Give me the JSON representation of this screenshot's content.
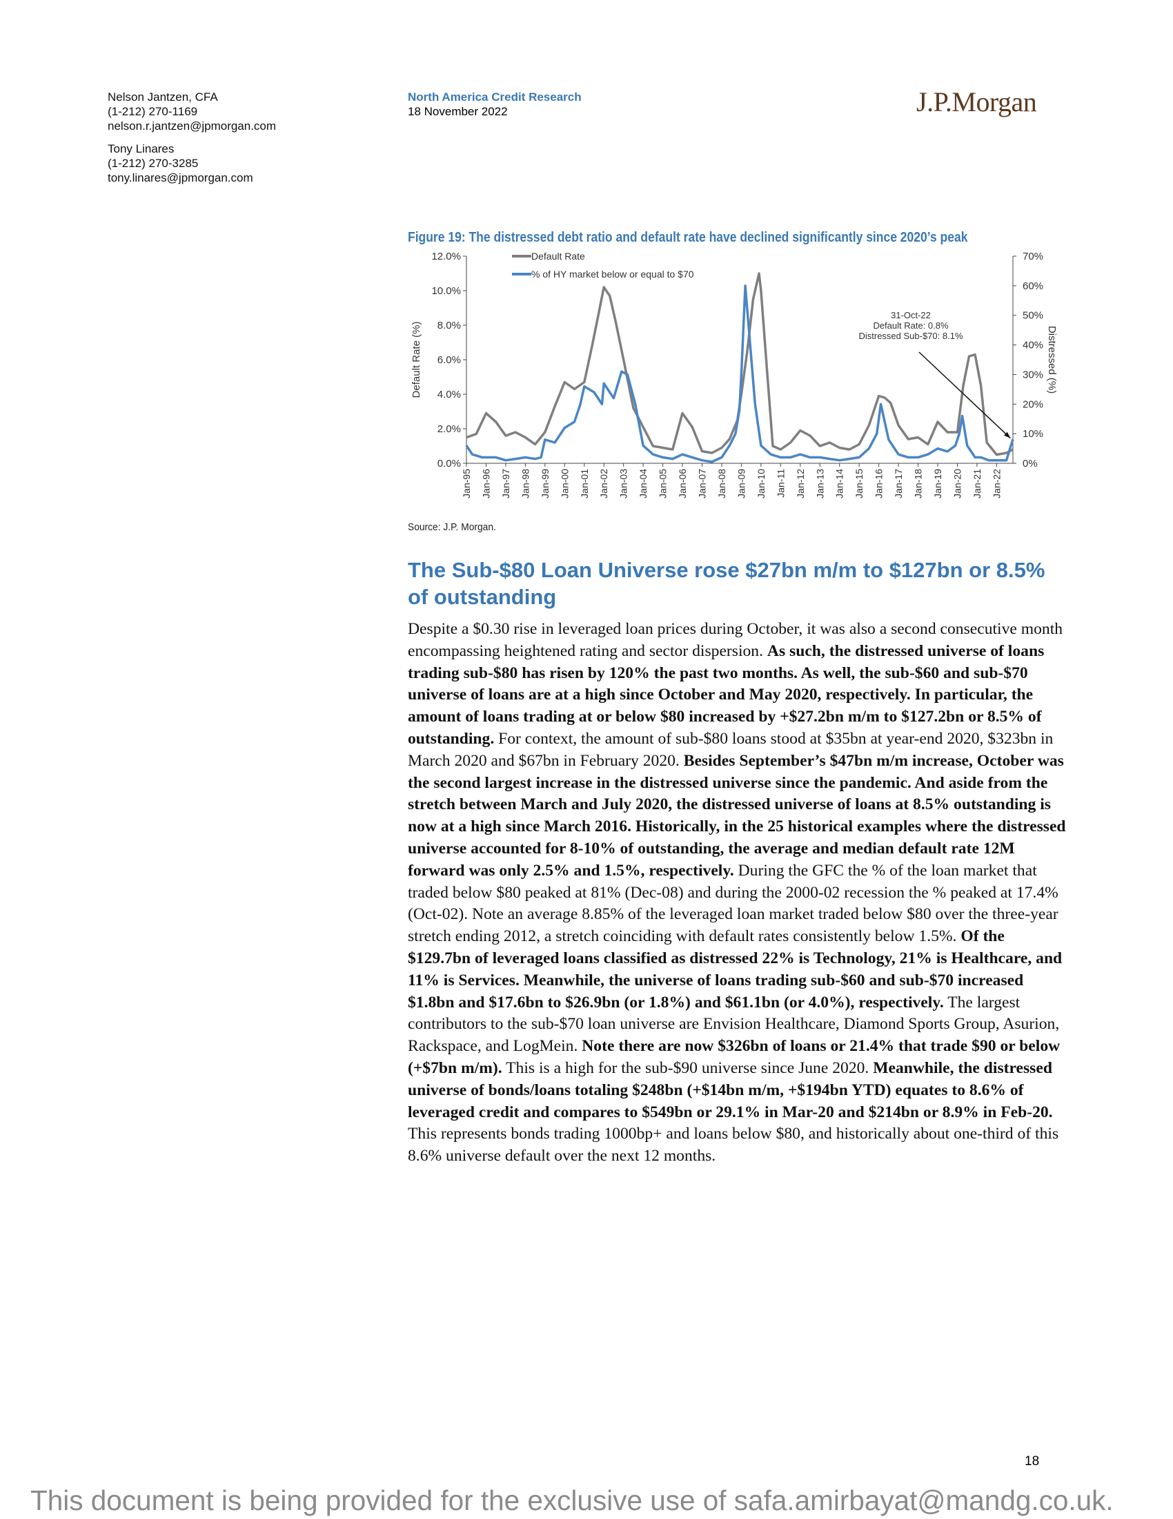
{
  "header": {
    "authors": [
      {
        "name": "Nelson Jantzen, CFA",
        "phone": "(1-212) 270-1169",
        "email": "nelson.r.jantzen@jpmorgan.com"
      },
      {
        "name": "Tony Linares",
        "phone": "(1-212) 270-3285",
        "email": "tony.linares@jpmorgan.com"
      }
    ],
    "department": "North America Credit Research",
    "date": "18 November 2022",
    "logo": "J.P.Morgan"
  },
  "figure": {
    "title": "Figure 19: The distressed debt ratio and default rate have declined significantly since 2020’s peak",
    "source": "Source: J.P. Morgan."
  },
  "chart_data": {
    "type": "line",
    "ylabel": "Default Rate (%)",
    "y2label": "Distressed (%)",
    "ylim": [
      0,
      12
    ],
    "y2lim": [
      0,
      70
    ],
    "yticks": [
      "0.0%",
      "2.0%",
      "4.0%",
      "6.0%",
      "8.0%",
      "10.0%",
      "12.0%"
    ],
    "y2ticks": [
      "0%",
      "10%",
      "20%",
      "30%",
      "40%",
      "50%",
      "60%",
      "70%"
    ],
    "categories": [
      "Jan-95",
      "Jan-96",
      "Jan-97",
      "Jan-98",
      "Jan-99",
      "Jan-00",
      "Jan-01",
      "Jan-02",
      "Jan-03",
      "Jan-04",
      "Jan-05",
      "Jan-06",
      "Jan-07",
      "Jan-08",
      "Jan-09",
      "Jan-10",
      "Jan-11",
      "Jan-12",
      "Jan-13",
      "Jan-14",
      "Jan-15",
      "Jan-16",
      "Jan-17",
      "Jan-18",
      "Jan-19",
      "Jan-20",
      "Jan-21",
      "Jan-22"
    ],
    "legend_position": "top-left",
    "series": [
      {
        "name": "Default Rate",
        "axis": "left",
        "color": "#7f7f7f",
        "x": [
          1995.0,
          1995.5,
          1996.0,
          1996.5,
          1997.0,
          1997.5,
          1998.0,
          1998.5,
          1999.0,
          1999.5,
          2000.0,
          2000.5,
          2001.0,
          2001.4,
          2001.7,
          2002.0,
          2002.3,
          2002.6,
          2003.0,
          2003.5,
          2004.0,
          2004.5,
          2005.0,
          2005.5,
          2006.0,
          2006.5,
          2007.0,
          2007.5,
          2008.0,
          2008.4,
          2008.8,
          2009.0,
          2009.3,
          2009.6,
          2009.9,
          2010.0,
          2010.3,
          2010.6,
          2011.0,
          2011.5,
          2012.0,
          2012.5,
          2013.0,
          2013.5,
          2014.0,
          2014.5,
          2015.0,
          2015.5,
          2016.0,
          2016.3,
          2016.6,
          2017.0,
          2017.5,
          2018.0,
          2018.5,
          2019.0,
          2019.5,
          2020.0,
          2020.3,
          2020.6,
          2020.9,
          2021.2,
          2021.5,
          2022.0,
          2022.5,
          2022.83
        ],
        "y": [
          1.5,
          1.7,
          2.9,
          2.4,
          1.6,
          1.8,
          1.5,
          1.1,
          1.8,
          3.3,
          4.7,
          4.3,
          4.7,
          6.8,
          8.5,
          10.2,
          9.7,
          8.2,
          6.0,
          3.2,
          2.1,
          1.0,
          0.9,
          0.8,
          2.9,
          2.1,
          0.7,
          0.6,
          0.9,
          1.4,
          2.5,
          4.0,
          6.5,
          9.5,
          11.0,
          10.0,
          5.5,
          1.0,
          0.8,
          1.2,
          1.9,
          1.6,
          1.0,
          1.2,
          0.9,
          0.8,
          1.1,
          2.2,
          3.9,
          3.8,
          3.5,
          2.2,
          1.4,
          1.5,
          1.1,
          2.4,
          1.8,
          1.8,
          4.5,
          6.2,
          6.3,
          4.5,
          1.2,
          0.5,
          0.6,
          0.8
        ]
      },
      {
        "name": "% of HY market below or equal to $70",
        "axis": "right",
        "color": "#4a86c5",
        "x": [
          1995.0,
          1995.3,
          1995.8,
          1996.5,
          1997.0,
          1997.5,
          1998.0,
          1998.5,
          1998.8,
          1999.0,
          1999.5,
          2000.0,
          2000.5,
          2000.8,
          2001.0,
          2001.5,
          2001.9,
          2002.0,
          2002.5,
          2002.9,
          2003.2,
          2003.6,
          2004.0,
          2004.5,
          2005.0,
          2005.5,
          2006.0,
          2006.5,
          2007.0,
          2007.5,
          2008.0,
          2008.4,
          2008.7,
          2008.9,
          2009.0,
          2009.2,
          2009.4,
          2009.7,
          2010.0,
          2010.5,
          2011.0,
          2011.5,
          2012.0,
          2012.5,
          2013.0,
          2013.5,
          2014.0,
          2014.5,
          2015.0,
          2015.5,
          2015.9,
          2016.1,
          2016.5,
          2017.0,
          2017.5,
          2018.0,
          2018.5,
          2019.0,
          2019.5,
          2019.9,
          2020.1,
          2020.25,
          2020.5,
          2020.9,
          2021.2,
          2021.6,
          2022.0,
          2022.5,
          2022.83
        ],
        "y": [
          6,
          3,
          2,
          2,
          1,
          1.5,
          2,
          1.5,
          2,
          8,
          7,
          12,
          14,
          20,
          26,
          24,
          20,
          27,
          22,
          31,
          30,
          20,
          6,
          3,
          2,
          1.5,
          3,
          2,
          1,
          0.5,
          2,
          6,
          10,
          18,
          30,
          60,
          44,
          20,
          6,
          3,
          2,
          2,
          3,
          2,
          2,
          1.5,
          1,
          1.5,
          2,
          5,
          10,
          20,
          8,
          3,
          2,
          2,
          3,
          5,
          4,
          6,
          10,
          16,
          6,
          2,
          2,
          1,
          1,
          1,
          8.1
        ]
      }
    ],
    "annotation": [
      "31-Oct-22",
      "Default Rate: 0.8%",
      "Distressed Sub-$70: 8.1%"
    ]
  },
  "section": {
    "heading": "The Sub-$80 Loan Universe rose $27bn m/m to $127bn or 8.5% of outstanding",
    "paragraph": [
      {
        "bold": false,
        "text": "Despite a $0.30 rise in leveraged loan prices during October, it was also a second consecutive month encompassing heightened rating and sector dispersion. "
      },
      {
        "bold": true,
        "text": "As such, the distressed universe of loans trading sub-$80 has risen by 120% the past two months. As well, the sub-$60 and sub-$70 universe of loans are at a high since October and May 2020, respectively. In particular, the amount of loans trading at or below $80 increased by +$27.2bn m/m to $127.2bn or 8.5% of outstanding."
      },
      {
        "bold": false,
        "text": " For context, the amount of sub-$80 loans stood at $35bn at year-end 2020, $323bn in March 2020 and $67bn in February 2020. "
      },
      {
        "bold": true,
        "text": "Besides September’s $47bn m/m increase, October was the second largest increase in the distressed universe since the pandemic. And aside from the stretch between March and July 2020, the distressed universe of loans at 8.5% outstanding is now at a high since March 2016. Historically, in the 25 historical examples where the distressed universe accounted for 8-10% of outstanding, the average and median default rate 12M forward was only 2.5% and 1.5%, respectively."
      },
      {
        "bold": false,
        "text": " During the GFC the % of the loan market that traded below $80 peaked at 81% (Dec-08) and during the 2000-02 recession the % peaked at 17.4% (Oct-02). Note an average 8.85% of the leveraged loan market traded below $80 over the three-year stretch ending 2012, a stretch coinciding with default rates consistently below 1.5%. "
      },
      {
        "bold": true,
        "text": "Of the $129.7bn of leveraged loans classified as distressed 22% is Technology, 21% is Healthcare, and 11% is Services.  Meanwhile, the universe of loans trading sub-$60 and sub-$70 increased $1.8bn and $17.6bn to $26.9bn (or 1.8%) and $61.1bn (or 4.0%), respectively."
      },
      {
        "bold": false,
        "text": "  The largest contributors to the sub-$70 loan universe are Envision Healthcare, Diamond Sports Group, Asurion, Rackspace, and LogMein. "
      },
      {
        "bold": true,
        "text": "Note there are now $326bn of loans or 21.4% that trade $90 or below (+$7bn m/m)."
      },
      {
        "bold": false,
        "text": " This is a high for the sub-$90 universe since June 2020. "
      },
      {
        "bold": true,
        "text": "Meanwhile, the distressed universe of bonds/loans totaling $248bn (+$14bn m/m, +$194bn YTD) equates to 8.6% of leveraged credit and compares to $549bn or 29.1% in Mar-20 and $214bn or 8.9% in Feb-20."
      },
      {
        "bold": false,
        "text": " This represents bonds trading 1000bp+ and loans below $80, and historically about one-third of this 8.6% universe default over the next 12 months."
      }
    ]
  },
  "page_number": "18",
  "footer": "This document is being provided for the exclusive use of safa.amirbayat@mandg.co.uk."
}
